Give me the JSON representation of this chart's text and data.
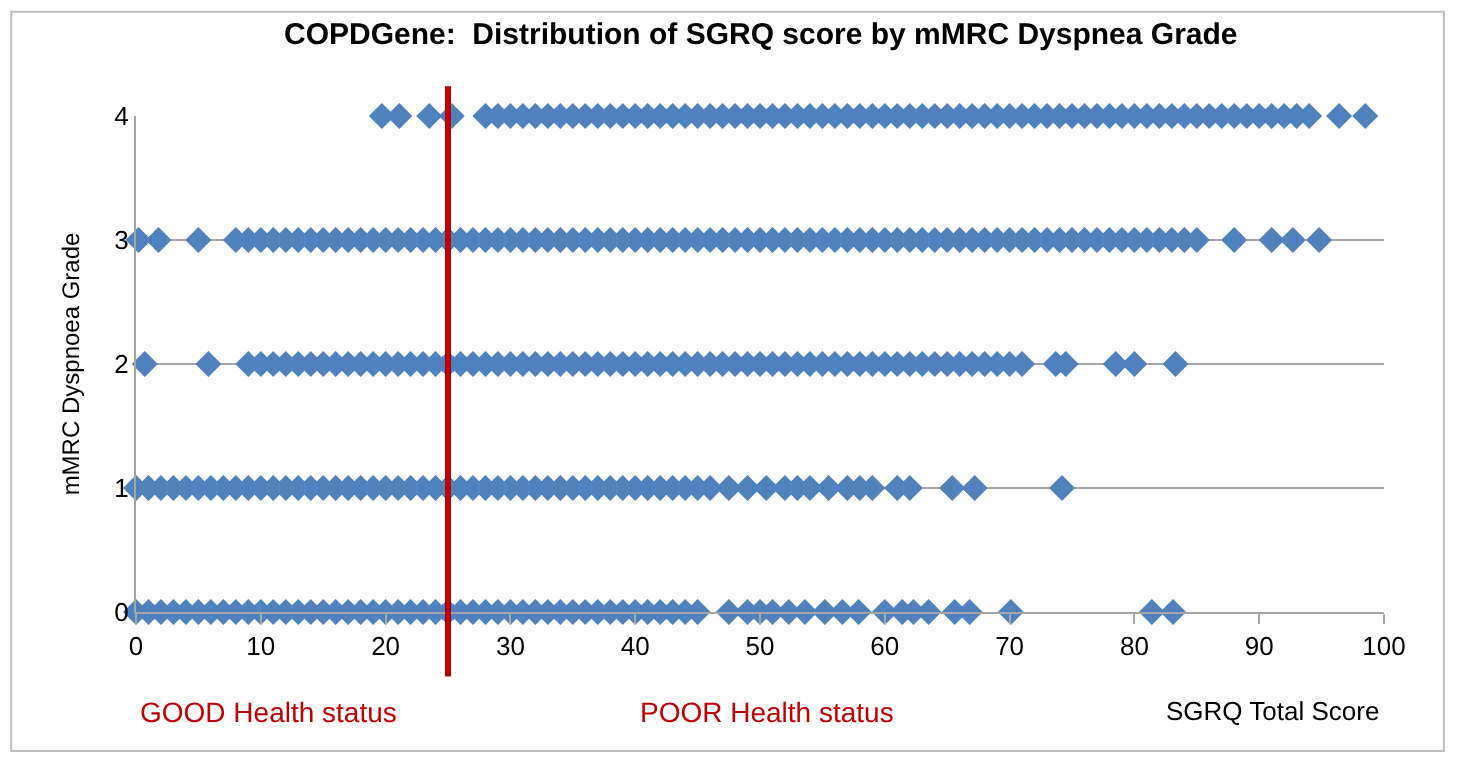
{
  "chart_data": {
    "type": "scatter",
    "title": "COPDGene:  Distribution of SGRQ score by mMRC Dyspnea Grade",
    "xlabel": "SGRQ Total Score",
    "ylabel": "mMRC Dyspnoea Grade",
    "annotations": [
      "GOOD Health status",
      "POOR Health status"
    ],
    "xlim": [
      0,
      100
    ],
    "xticks": [
      0,
      10,
      20,
      30,
      40,
      50,
      60,
      70,
      80,
      90,
      100
    ],
    "ylim": [
      0,
      4
    ],
    "yticks": [
      0,
      1,
      2,
      3,
      4
    ],
    "grid": "y",
    "marker": "diamond",
    "ref_lines": [
      {
        "axis": "x",
        "value": 25,
        "color": "#c00000"
      }
    ],
    "series": [
      {
        "color": "#4f81bd",
        "x": [
          19.7,
          21.1,
          23.5,
          25.3,
          28,
          29,
          30,
          31,
          32,
          33,
          34,
          35,
          36,
          37,
          38,
          39,
          40,
          41,
          42,
          43,
          44,
          45,
          46,
          47,
          48,
          49,
          50,
          51,
          52,
          53,
          54,
          55,
          56,
          57,
          58,
          59,
          60,
          61,
          62,
          63,
          64,
          65,
          66,
          67,
          68,
          69,
          70,
          71,
          72,
          73,
          74,
          75,
          76,
          77,
          78,
          79,
          80,
          81,
          82,
          83,
          84,
          85,
          86,
          87,
          88,
          89,
          90,
          91,
          92,
          93,
          94,
          96.4,
          98.5
        ],
        "values": [
          4,
          4,
          4,
          4,
          4,
          4,
          4,
          4,
          4,
          4,
          4,
          4,
          4,
          4,
          4,
          4,
          4,
          4,
          4,
          4,
          4,
          4,
          4,
          4,
          4,
          4,
          4,
          4,
          4,
          4,
          4,
          4,
          4,
          4,
          4,
          4,
          4,
          4,
          4,
          4,
          4,
          4,
          4,
          4,
          4,
          4,
          4,
          4,
          4,
          4,
          4,
          4,
          4,
          4,
          4,
          4,
          4,
          4,
          4,
          4,
          4,
          4,
          4,
          4,
          4,
          4,
          4,
          4,
          4,
          4,
          4,
          4,
          4
        ]
      },
      {
        "color": "#4f81bd",
        "x": [
          0.2,
          1.8,
          5,
          8,
          9,
          10,
          11,
          12,
          13,
          14,
          15,
          16,
          17,
          18,
          19,
          20,
          21,
          22,
          23,
          24,
          25,
          26,
          27,
          28,
          29,
          30,
          31,
          32,
          33,
          34,
          35,
          36,
          37,
          38,
          39,
          40,
          41,
          42,
          43,
          44,
          45,
          46,
          47,
          48,
          49,
          50,
          51,
          52,
          53,
          54,
          55,
          56,
          57,
          58,
          59,
          60,
          61,
          62,
          63,
          64,
          65,
          66,
          67,
          68,
          69,
          70,
          71,
          72,
          73,
          74,
          75,
          76,
          77,
          78,
          79,
          80,
          81,
          82,
          83,
          84,
          85,
          88,
          91,
          92.7,
          94.8
        ],
        "values": [
          3,
          3,
          3,
          3,
          3,
          3,
          3,
          3,
          3,
          3,
          3,
          3,
          3,
          3,
          3,
          3,
          3,
          3,
          3,
          3,
          3,
          3,
          3,
          3,
          3,
          3,
          3,
          3,
          3,
          3,
          3,
          3,
          3,
          3,
          3,
          3,
          3,
          3,
          3,
          3,
          3,
          3,
          3,
          3,
          3,
          3,
          3,
          3,
          3,
          3,
          3,
          3,
          3,
          3,
          3,
          3,
          3,
          3,
          3,
          3,
          3,
          3,
          3,
          3,
          3,
          3,
          3,
          3,
          3,
          3,
          3,
          3,
          3,
          3,
          3,
          3,
          3,
          3,
          3,
          3,
          3,
          3,
          3,
          3,
          3
        ]
      },
      {
        "color": "#4f81bd",
        "x": [
          0.7,
          5.8,
          9,
          10,
          11,
          12,
          13,
          14,
          15,
          16,
          17,
          18,
          19,
          20,
          21,
          22,
          23,
          24,
          25,
          26,
          27,
          28,
          29,
          30,
          31,
          32,
          33,
          34,
          35,
          36,
          37,
          38,
          39,
          40,
          41,
          42,
          43,
          44,
          45,
          46,
          47,
          48,
          49,
          50,
          51,
          52,
          53,
          54,
          55,
          56,
          57,
          58,
          59,
          60,
          61,
          62,
          63,
          64,
          65,
          66,
          67,
          68,
          69,
          70,
          71,
          73.7,
          74.5,
          78.5,
          80,
          83.3
        ],
        "values": [
          2,
          2,
          2,
          2,
          2,
          2,
          2,
          2,
          2,
          2,
          2,
          2,
          2,
          2,
          2,
          2,
          2,
          2,
          2,
          2,
          2,
          2,
          2,
          2,
          2,
          2,
          2,
          2,
          2,
          2,
          2,
          2,
          2,
          2,
          2,
          2,
          2,
          2,
          2,
          2,
          2,
          2,
          2,
          2,
          2,
          2,
          2,
          2,
          2,
          2,
          2,
          2,
          2,
          2,
          2,
          2,
          2,
          2,
          2,
          2,
          2,
          2,
          2,
          2,
          2,
          2,
          2,
          2,
          2,
          2
        ]
      },
      {
        "color": "#4f81bd",
        "x": [
          0,
          1,
          2,
          3,
          4,
          5,
          6,
          7,
          8,
          9,
          10,
          11,
          12,
          13,
          14,
          15,
          16,
          17,
          18,
          19,
          20,
          21,
          22,
          23,
          24,
          25,
          26,
          27,
          28,
          29,
          30,
          31,
          32,
          33,
          34,
          35,
          36,
          37,
          38,
          39,
          40,
          41,
          42,
          43,
          44,
          45,
          46,
          47.5,
          49,
          50.5,
          52,
          53,
          54,
          55.5,
          57,
          58,
          59,
          61,
          62,
          65.4,
          67.2,
          74.2
        ],
        "values": [
          1,
          1,
          1,
          1,
          1,
          1,
          1,
          1,
          1,
          1,
          1,
          1,
          1,
          1,
          1,
          1,
          1,
          1,
          1,
          1,
          1,
          1,
          1,
          1,
          1,
          1,
          1,
          1,
          1,
          1,
          1,
          1,
          1,
          1,
          1,
          1,
          1,
          1,
          1,
          1,
          1,
          1,
          1,
          1,
          1,
          1,
          1,
          1,
          1,
          1,
          1,
          1,
          1,
          1,
          1,
          1,
          1,
          1,
          1,
          1,
          1,
          1
        ]
      },
      {
        "color": "#4f81bd",
        "x": [
          0,
          1,
          2,
          3,
          4,
          5,
          6,
          7,
          8,
          9,
          10,
          11,
          12,
          13,
          14,
          15,
          16,
          17,
          18,
          19,
          20,
          21,
          22,
          23,
          24,
          25,
          26,
          27,
          28,
          29,
          30,
          31,
          32,
          33,
          34,
          35,
          36,
          37,
          38,
          39,
          40,
          41,
          42,
          43,
          44,
          45,
          47.5,
          49,
          50,
          51,
          52.3,
          53.6,
          55.2,
          56.6,
          57.9,
          60,
          61.4,
          62.3,
          63.5,
          65.6,
          66.8,
          70.1,
          81.4,
          83.1
        ],
        "values": [
          0,
          0,
          0,
          0,
          0,
          0,
          0,
          0,
          0,
          0,
          0,
          0,
          0,
          0,
          0,
          0,
          0,
          0,
          0,
          0,
          0,
          0,
          0,
          0,
          0,
          0,
          0,
          0,
          0,
          0,
          0,
          0,
          0,
          0,
          0,
          0,
          0,
          0,
          0,
          0,
          0,
          0,
          0,
          0,
          0,
          0,
          0,
          0,
          0,
          0,
          0,
          0,
          0,
          0,
          0,
          0,
          0,
          0,
          0,
          0,
          0,
          0,
          0,
          0
        ]
      }
    ]
  }
}
